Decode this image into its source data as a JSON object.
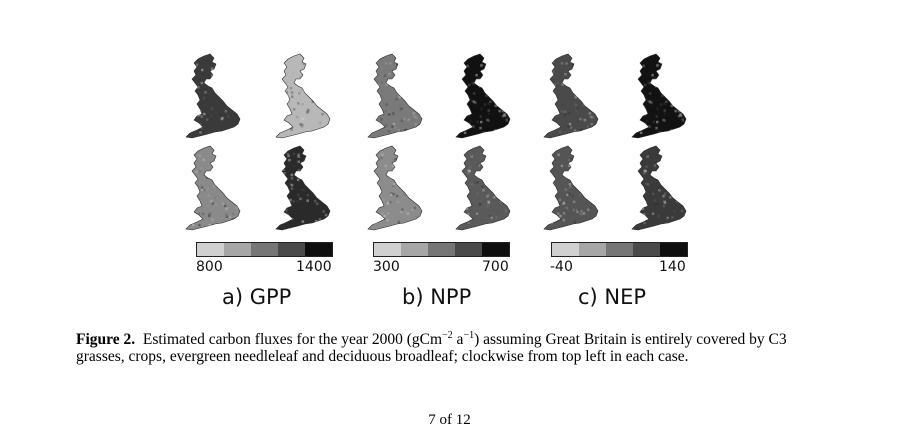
{
  "panels": [
    {
      "id": "gpp",
      "label": "a) GPP",
      "colorbar_min": "800",
      "colorbar_max": "1400",
      "map_shades": [
        [
          "#3a3a3a",
          "#b8b8b8"
        ],
        [
          "#8a8a8a",
          "#2a2a2a"
        ]
      ]
    },
    {
      "id": "npp",
      "label": "b) NPP",
      "colorbar_min": "300",
      "colorbar_max": "700",
      "map_shades": [
        [
          "#7a7a7a",
          "#111111"
        ],
        [
          "#8c8c8c",
          "#5a5a5a"
        ]
      ]
    },
    {
      "id": "nep",
      "label": "c) NEP",
      "colorbar_min": "-40",
      "colorbar_max": "140",
      "map_shades": [
        [
          "#4a4a4a",
          "#121212"
        ],
        [
          "#555555",
          "#3a3a3a"
        ]
      ]
    }
  ],
  "colorbar_steps": [
    "#d0d0d0",
    "#a6a6a6",
    "#767676",
    "#4a4a4a",
    "#0e0e0e"
  ],
  "caption": {
    "label": "Figure 2.",
    "text_before_units": "Estimated carbon fluxes for the year 2000 (gCm",
    "exp1": "−2",
    "units_mid": " a",
    "exp2": "−1",
    "text_after_units": ") assuming Great Britain is entirely covered by C3 grasses, crops, evergreen needleleaf and deciduous broadleaf; clockwise from top left in each case."
  },
  "page_number": "7 of 12"
}
